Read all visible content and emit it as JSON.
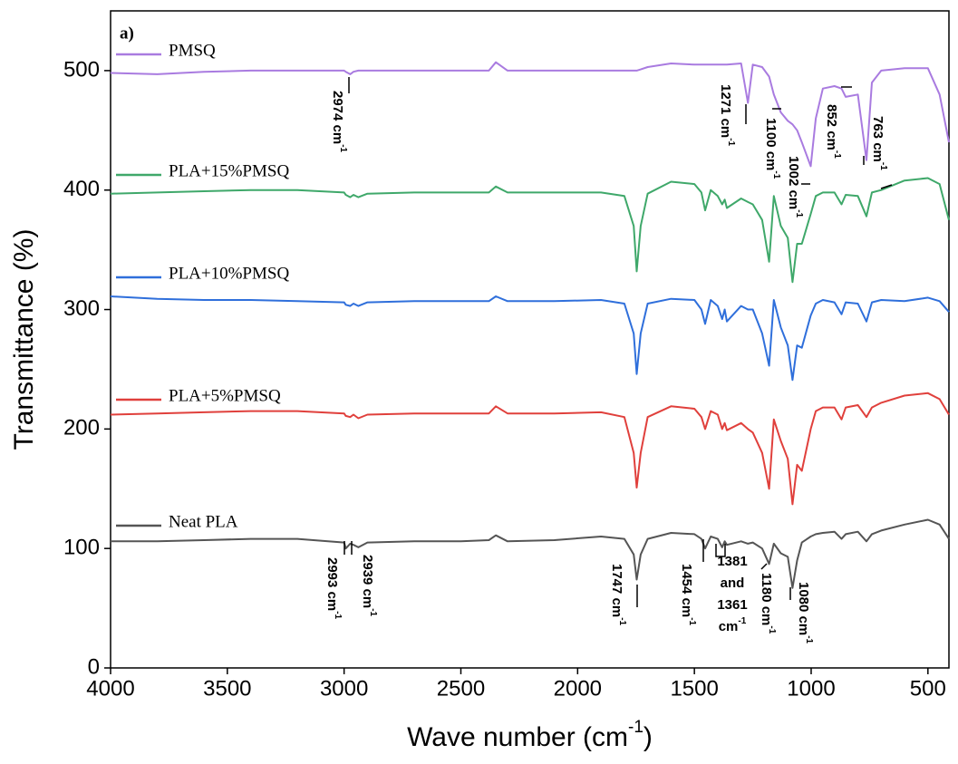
{
  "chart_data": {
    "type": "line",
    "title": "a)",
    "xlabel": {
      "text": "Wave number (cm",
      "sup": "-1",
      "tail": ")"
    },
    "ylabel": "Transmittance (%)",
    "xlim": [
      4000,
      410
    ],
    "ylim": [
      0,
      550
    ],
    "xticks": [
      4000,
      3500,
      3000,
      2500,
      2000,
      1500,
      1000,
      500
    ],
    "yticks": [
      0,
      100,
      200,
      300,
      400,
      500
    ],
    "x": [
      4000,
      3800,
      3600,
      3400,
      3200,
      3000,
      2993,
      2974,
      2960,
      2939,
      2900,
      2700,
      2500,
      2380,
      2350,
      2300,
      2100,
      1900,
      1800,
      1760,
      1747,
      1730,
      1700,
      1600,
      1500,
      1470,
      1454,
      1430,
      1400,
      1381,
      1370,
      1361,
      1300,
      1271,
      1250,
      1210,
      1180,
      1160,
      1130,
      1100,
      1080,
      1060,
      1040,
      1002,
      980,
      950,
      900,
      870,
      852,
      800,
      763,
      740,
      700,
      600,
      500,
      450,
      410
    ],
    "series": [
      {
        "name": "PMSQ",
        "color": "#a97be0",
        "values": [
          498,
          497,
          499,
          500,
          500,
          500,
          499,
          497,
          499,
          500,
          500,
          500,
          500,
          500,
          507,
          500,
          500,
          500,
          500,
          500,
          500,
          501,
          503,
          506,
          505,
          505,
          505,
          505,
          505,
          505,
          505,
          505,
          506,
          473,
          505,
          503,
          495,
          480,
          465,
          458,
          455,
          450,
          440,
          420,
          460,
          485,
          487,
          485,
          478,
          480,
          425,
          490,
          500,
          502,
          502,
          480,
          440
        ]
      },
      {
        "name": "PLA+15%PMSQ",
        "color": "#3fa86a",
        "values": [
          397,
          398,
          399,
          400,
          400,
          398,
          396,
          394,
          396,
          394,
          397,
          398,
          398,
          398,
          403,
          398,
          398,
          398,
          395,
          370,
          332,
          370,
          397,
          407,
          405,
          398,
          383,
          400,
          395,
          388,
          392,
          385,
          393,
          390,
          388,
          375,
          340,
          395,
          370,
          360,
          323,
          355,
          355,
          380,
          395,
          398,
          398,
          388,
          396,
          395,
          378,
          398,
          400,
          408,
          410,
          405,
          375
        ]
      },
      {
        "name": "PLA+10%PMSQ",
        "color": "#2f6fdb",
        "values": [
          311,
          309,
          308,
          308,
          307,
          306,
          304,
          303,
          305,
          303,
          306,
          307,
          307,
          307,
          311,
          307,
          307,
          308,
          305,
          280,
          246,
          280,
          305,
          309,
          308,
          300,
          288,
          308,
          303,
          292,
          300,
          290,
          303,
          300,
          300,
          280,
          253,
          308,
          285,
          270,
          241,
          270,
          268,
          295,
          305,
          308,
          306,
          296,
          306,
          305,
          290,
          306,
          308,
          307,
          310,
          307,
          298
        ]
      },
      {
        "name": "PLA+5%PMSQ",
        "color": "#e0403c",
        "values": [
          212,
          213,
          214,
          215,
          215,
          213,
          211,
          210,
          212,
          209,
          212,
          213,
          213,
          213,
          219,
          213,
          213,
          214,
          210,
          180,
          151,
          180,
          210,
          219,
          217,
          210,
          200,
          215,
          212,
          200,
          205,
          199,
          205,
          200,
          197,
          180,
          150,
          208,
          190,
          175,
          137,
          170,
          165,
          200,
          215,
          218,
          218,
          208,
          218,
          220,
          210,
          218,
          222,
          228,
          230,
          225,
          212
        ]
      },
      {
        "name": "Neat PLA",
        "color": "#555555",
        "values": [
          106,
          106,
          107,
          108,
          108,
          105,
          100,
          104,
          103,
          101,
          105,
          106,
          106,
          107,
          111,
          106,
          107,
          110,
          108,
          95,
          74,
          95,
          108,
          113,
          112,
          108,
          100,
          110,
          108,
          101,
          106,
          103,
          106,
          104,
          105,
          100,
          87,
          104,
          96,
          93,
          67,
          90,
          105,
          110,
          112,
          113,
          114,
          108,
          112,
          114,
          106,
          112,
          115,
          120,
          124,
          120,
          108
        ]
      }
    ],
    "annotations": [
      {
        "text": "2974 cm",
        "sup": "-1"
      },
      {
        "text": "1271 cm",
        "sup": "-1"
      },
      {
        "text": "1100 cm",
        "sup": "-1"
      },
      {
        "text": "1002 cm",
        "sup": "-1"
      },
      {
        "text": "852 cm",
        "sup": "-1"
      },
      {
        "text": "763 cm",
        "sup": "-1"
      },
      {
        "text": "2993 cm",
        "sup": "-1"
      },
      {
        "text": "2939 cm",
        "sup": "-1"
      },
      {
        "text": "1747 cm",
        "sup": "-1"
      },
      {
        "text": "1454 cm",
        "sup": "-1"
      },
      {
        "text": "1180 cm",
        "sup": "-1"
      },
      {
        "text": "1080 cm",
        "sup": "-1"
      },
      {
        "lines": [
          "1381",
          "and",
          "1361",
          "cm"
        ],
        "sup": "-1"
      }
    ]
  }
}
